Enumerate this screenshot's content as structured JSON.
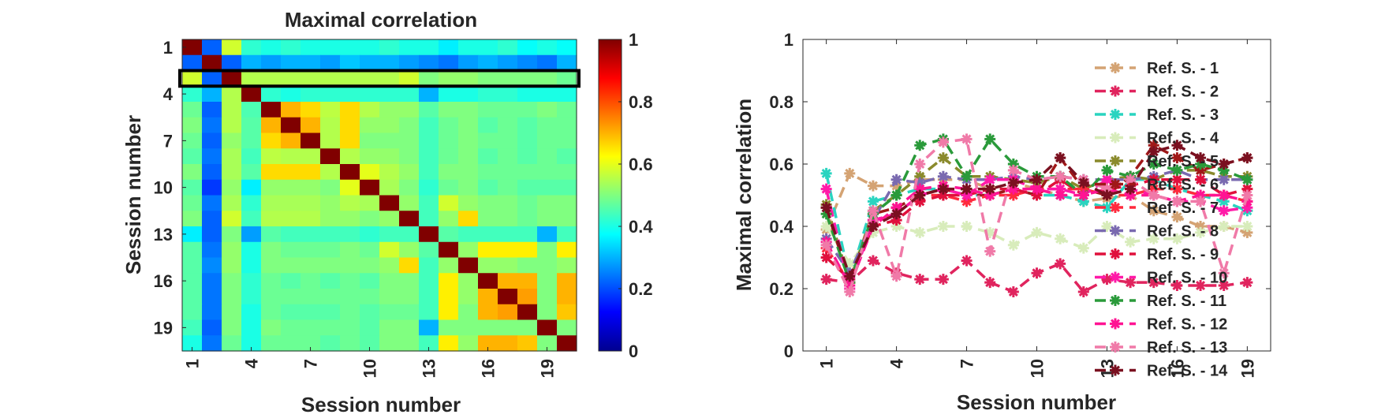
{
  "chart_data": [
    {
      "type": "heatmap",
      "title": "Maximal correlation",
      "xlabel": "Session number",
      "ylabel": "Session number",
      "n": 20,
      "xticks": [
        "1",
        "4",
        "7",
        "10",
        "13",
        "16",
        "19"
      ],
      "yticks": [
        "1",
        "4",
        "7",
        "10",
        "13",
        "16",
        "19"
      ],
      "colorbar": {
        "min": 0,
        "max": 1,
        "ticks": [
          "0",
          "0.2",
          "0.4",
          "0.6",
          "0.8",
          "1"
        ],
        "colormap": "jet"
      },
      "highlight_row": 3,
      "highlight_color": "#000000",
      "matrix": [
        [
          1.0,
          0.22,
          0.58,
          0.42,
          0.4,
          0.42,
          0.4,
          0.4,
          0.4,
          0.4,
          0.42,
          0.4,
          0.4,
          0.36,
          0.4,
          0.4,
          0.42,
          0.38,
          0.4,
          0.38
        ],
        [
          0.22,
          1.0,
          0.22,
          0.3,
          0.28,
          0.3,
          0.3,
          0.28,
          0.32,
          0.3,
          0.3,
          0.28,
          0.26,
          0.24,
          0.28,
          0.3,
          0.28,
          0.26,
          0.24,
          0.3
        ],
        [
          0.58,
          0.22,
          1.0,
          0.55,
          0.55,
          0.55,
          0.55,
          0.55,
          0.55,
          0.55,
          0.55,
          0.58,
          0.5,
          0.52,
          0.52,
          0.5,
          0.5,
          0.5,
          0.5,
          0.48
        ],
        [
          0.42,
          0.3,
          0.55,
          1.0,
          0.42,
          0.4,
          0.42,
          0.42,
          0.42,
          0.42,
          0.42,
          0.42,
          0.3,
          0.4,
          0.4,
          0.42,
          0.42,
          0.4,
          0.4,
          0.4
        ],
        [
          0.48,
          0.22,
          0.55,
          0.45,
          1.0,
          0.7,
          0.66,
          0.56,
          0.66,
          0.55,
          0.52,
          0.52,
          0.46,
          0.5,
          0.5,
          0.48,
          0.48,
          0.48,
          0.5,
          0.48
        ],
        [
          0.5,
          0.24,
          0.55,
          0.46,
          0.7,
          1.0,
          0.7,
          0.55,
          0.66,
          0.52,
          0.52,
          0.5,
          0.44,
          0.48,
          0.5,
          0.46,
          0.48,
          0.46,
          0.48,
          0.48
        ],
        [
          0.48,
          0.22,
          0.52,
          0.46,
          0.66,
          0.7,
          1.0,
          0.55,
          0.66,
          0.5,
          0.5,
          0.5,
          0.44,
          0.48,
          0.5,
          0.48,
          0.48,
          0.46,
          0.48,
          0.48
        ],
        [
          0.46,
          0.24,
          0.54,
          0.44,
          0.56,
          0.55,
          0.55,
          1.0,
          0.55,
          0.52,
          0.52,
          0.5,
          0.44,
          0.48,
          0.5,
          0.46,
          0.48,
          0.46,
          0.48,
          0.46
        ],
        [
          0.5,
          0.22,
          0.54,
          0.46,
          0.66,
          0.66,
          0.66,
          0.55,
          1.0,
          0.6,
          0.55,
          0.52,
          0.44,
          0.5,
          0.5,
          0.48,
          0.48,
          0.48,
          0.48,
          0.48
        ],
        [
          0.46,
          0.18,
          0.52,
          0.36,
          0.52,
          0.52,
          0.52,
          0.5,
          0.6,
          1.0,
          0.54,
          0.5,
          0.42,
          0.48,
          0.5,
          0.46,
          0.48,
          0.46,
          0.46,
          0.46
        ],
        [
          0.48,
          0.24,
          0.54,
          0.42,
          0.54,
          0.54,
          0.54,
          0.52,
          0.55,
          0.54,
          1.0,
          0.52,
          0.44,
          0.58,
          0.52,
          0.5,
          0.5,
          0.48,
          0.5,
          0.5
        ],
        [
          0.5,
          0.22,
          0.58,
          0.44,
          0.55,
          0.55,
          0.55,
          0.52,
          0.52,
          0.5,
          0.52,
          1.0,
          0.44,
          0.52,
          0.66,
          0.5,
          0.5,
          0.48,
          0.5,
          0.5
        ],
        [
          0.36,
          0.22,
          0.5,
          0.28,
          0.46,
          0.44,
          0.44,
          0.44,
          0.44,
          0.42,
          0.44,
          0.44,
          1.0,
          0.46,
          0.44,
          0.44,
          0.44,
          0.44,
          0.3,
          0.44
        ],
        [
          0.46,
          0.24,
          0.52,
          0.4,
          0.5,
          0.48,
          0.48,
          0.48,
          0.5,
          0.48,
          0.58,
          0.52,
          0.46,
          1.0,
          0.52,
          0.64,
          0.64,
          0.64,
          0.5,
          0.64
        ],
        [
          0.46,
          0.26,
          0.52,
          0.4,
          0.5,
          0.5,
          0.5,
          0.5,
          0.5,
          0.5,
          0.52,
          0.66,
          0.44,
          0.52,
          1.0,
          0.52,
          0.52,
          0.5,
          0.5,
          0.52
        ],
        [
          0.46,
          0.24,
          0.5,
          0.42,
          0.48,
          0.46,
          0.48,
          0.46,
          0.48,
          0.46,
          0.5,
          0.5,
          0.44,
          0.64,
          0.52,
          1.0,
          0.7,
          0.7,
          0.5,
          0.7
        ],
        [
          0.46,
          0.24,
          0.5,
          0.42,
          0.48,
          0.48,
          0.48,
          0.48,
          0.48,
          0.48,
          0.5,
          0.5,
          0.44,
          0.64,
          0.52,
          0.7,
          1.0,
          0.72,
          0.5,
          0.7
        ],
        [
          0.46,
          0.24,
          0.5,
          0.4,
          0.48,
          0.46,
          0.46,
          0.46,
          0.48,
          0.46,
          0.48,
          0.48,
          0.44,
          0.64,
          0.5,
          0.7,
          0.72,
          1.0,
          0.5,
          0.68
        ],
        [
          0.44,
          0.22,
          0.5,
          0.4,
          0.5,
          0.48,
          0.48,
          0.48,
          0.48,
          0.46,
          0.5,
          0.5,
          0.3,
          0.5,
          0.5,
          0.5,
          0.5,
          0.5,
          1.0,
          0.5
        ],
        [
          0.4,
          0.24,
          0.48,
          0.4,
          0.48,
          0.48,
          0.48,
          0.46,
          0.48,
          0.46,
          0.5,
          0.5,
          0.44,
          0.64,
          0.52,
          0.7,
          0.7,
          0.68,
          0.5,
          1.0
        ]
      ]
    },
    {
      "type": "line",
      "title": "",
      "xlabel": "Session number",
      "ylabel": "Maximal correlation",
      "xlim": [
        0,
        20
      ],
      "ylim": [
        0,
        1
      ],
      "xticks": [
        1,
        4,
        7,
        10,
        13,
        16,
        19
      ],
      "yticks": [
        0,
        0.2,
        0.4,
        0.6,
        0.8,
        1
      ],
      "ytick_labels": [
        "0",
        "0.2",
        "0.4",
        "0.6",
        "0.8",
        "1"
      ],
      "legend_location": "right",
      "marker": "asterisk",
      "line_style": "dashed",
      "x": [
        1,
        2,
        3,
        4,
        5,
        6,
        7,
        8,
        9,
        10,
        11,
        12,
        13,
        14,
        15,
        16,
        17,
        18,
        19
      ],
      "series": [
        {
          "name": "Ref. S. - 1",
          "color": "#d4a373",
          "values": [
            0.39,
            0.57,
            0.53,
            0.53,
            0.55,
            0.55,
            0.55,
            0.52,
            0.54,
            0.52,
            0.5,
            0.48,
            0.49,
            0.5,
            0.45,
            0.43,
            0.4,
            0.4,
            0.38
          ]
        },
        {
          "name": "Ref. S. - 2",
          "color": "#e0245e",
          "values": [
            0.23,
            0.22,
            0.29,
            0.25,
            0.23,
            0.23,
            0.29,
            0.22,
            0.19,
            0.25,
            0.28,
            0.19,
            0.23,
            0.22,
            0.22,
            0.21,
            0.21,
            0.21,
            0.22
          ]
        },
        {
          "name": "Ref. S. - 3",
          "color": "#2ad4c0",
          "values": [
            0.57,
            0.23,
            0.48,
            0.5,
            0.52,
            0.52,
            0.5,
            0.5,
            0.52,
            0.5,
            0.5,
            0.48,
            0.46,
            0.55,
            0.55,
            0.52,
            0.5,
            0.48,
            0.45
          ]
        },
        {
          "name": "Ref. S. - 4",
          "color": "#d8ecbb",
          "values": [
            0.4,
            0.28,
            0.38,
            0.4,
            0.38,
            0.4,
            0.4,
            0.38,
            0.34,
            0.38,
            0.36,
            0.33,
            0.4,
            0.35,
            0.36,
            0.36,
            0.38,
            0.4,
            0.4
          ]
        },
        {
          "name": "Ref. S. - 5",
          "color": "#8a8a2c",
          "values": [
            0.47,
            0.22,
            0.45,
            0.5,
            0.56,
            0.62,
            0.56,
            0.56,
            0.55,
            0.54,
            0.56,
            0.52,
            0.55,
            0.56,
            0.55,
            0.58,
            0.58,
            0.56,
            0.56
          ]
        },
        {
          "name": "Ref. S. - 6",
          "color": "#a01818",
          "values": [
            0.46,
            0.22,
            0.44,
            0.46,
            0.5,
            0.52,
            0.5,
            0.5,
            0.52,
            0.5,
            0.62,
            0.52,
            0.5,
            0.56,
            0.66,
            0.62,
            0.58,
            0.6,
            0.62
          ]
        },
        {
          "name": "Ref. S. - 7",
          "color": "#ff2a3d",
          "values": [
            0.33,
            0.22,
            0.42,
            0.44,
            0.5,
            0.5,
            0.48,
            0.5,
            0.5,
            0.52,
            0.52,
            0.52,
            0.5,
            0.5,
            0.52,
            0.52,
            0.5,
            0.5,
            0.48
          ]
        },
        {
          "name": "Ref. S. - 8",
          "color": "#7a6ab0",
          "values": [
            0.36,
            0.25,
            0.42,
            0.55,
            0.54,
            0.56,
            0.55,
            0.55,
            0.56,
            0.55,
            0.56,
            0.55,
            0.55,
            0.55,
            0.56,
            0.58,
            0.55,
            0.55,
            0.55
          ]
        },
        {
          "name": "Ref. S. - 9",
          "color": "#e0103c",
          "values": [
            0.3,
            0.23,
            0.4,
            0.42,
            0.48,
            0.5,
            0.5,
            0.52,
            0.52,
            0.5,
            0.55,
            0.5,
            0.52,
            0.53,
            0.55,
            0.55,
            0.55,
            0.5,
            0.52
          ]
        },
        {
          "name": "Ref. S. - 10",
          "color": "#ff1aa8",
          "values": [
            0.52,
            0.2,
            0.42,
            0.44,
            0.5,
            0.52,
            0.5,
            0.55,
            0.55,
            0.52,
            0.52,
            0.5,
            0.55,
            0.52,
            0.5,
            0.48,
            0.48,
            0.45,
            0.46
          ]
        },
        {
          "name": "Ref. S. - 11",
          "color": "#2a9a3a",
          "values": [
            0.44,
            0.22,
            0.44,
            0.5,
            0.66,
            0.68,
            0.56,
            0.68,
            0.6,
            0.56,
            0.56,
            0.5,
            0.58,
            0.56,
            0.6,
            0.58,
            0.6,
            0.58,
            0.55
          ]
        },
        {
          "name": "Ref. S. - 12",
          "color": "#ff1493",
          "values": [
            0.35,
            0.21,
            0.4,
            0.46,
            0.52,
            0.53,
            0.52,
            0.5,
            0.52,
            0.52,
            0.5,
            0.5,
            0.52,
            0.5,
            0.5,
            0.48,
            0.5,
            0.5,
            0.48
          ]
        },
        {
          "name": "Ref. S. - 13",
          "color": "#f07aa8",
          "values": [
            0.34,
            0.19,
            0.45,
            0.24,
            0.6,
            0.67,
            0.68,
            0.32,
            0.58,
            0.55,
            0.56,
            0.55,
            0.52,
            0.55,
            0.5,
            0.48,
            0.48,
            0.25,
            0.5
          ]
        },
        {
          "name": "Ref. S. - 14",
          "color": "#7a1020",
          "values": [
            0.46,
            0.24,
            0.4,
            0.44,
            0.5,
            0.52,
            0.52,
            0.52,
            0.54,
            0.55,
            0.62,
            0.54,
            0.5,
            0.52,
            0.64,
            0.66,
            0.62,
            0.6,
            0.62
          ]
        }
      ]
    }
  ]
}
